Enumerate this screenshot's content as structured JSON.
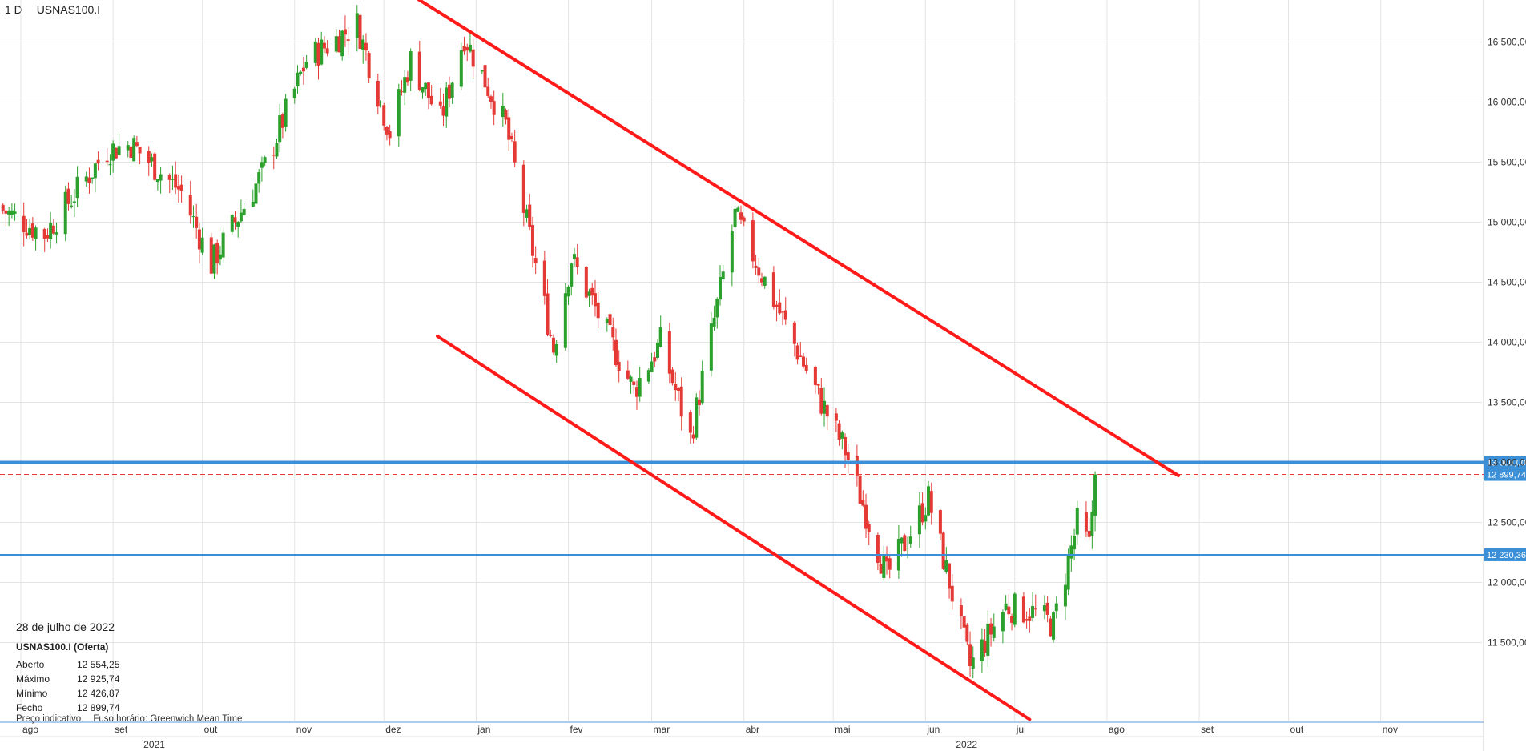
{
  "header": {
    "interval": "1 D",
    "instrument": "USNAS100.I"
  },
  "info_panel": {
    "date": "28 de julho de 2022",
    "instrument": "USNAS100.I (Oferta)",
    "rows": [
      {
        "label": "Aberto",
        "value": "12 554,25"
      },
      {
        "label": "Máximo",
        "value": "12 925,74"
      },
      {
        "label": "Mínimo",
        "value": "12 426,87"
      },
      {
        "label": "Fecho",
        "value": "12 899,74"
      }
    ]
  },
  "footnote": {
    "price_type": "Preço indicativo",
    "timezone": "Fuso horário: Greenwich Mean Time"
  },
  "colors": {
    "up": "#2ca02c",
    "down": "#e53935",
    "trendline": "#ff1a1a",
    "level": "#3a8fd6",
    "grid": "#e4e4e4"
  },
  "chart_data": {
    "type": "candlestick",
    "ylim": [
      10850,
      16850
    ],
    "x_range": [
      "2021-07-25",
      "2022-12-05"
    ],
    "y_ticks": [
      11500,
      12000,
      12500,
      13000,
      13500,
      14000,
      14500,
      15000,
      15500,
      16000,
      16500
    ],
    "y_tick_labels": [
      "11 500,00",
      "12 000,00",
      "12 500,00",
      "13 000,00",
      "13 500,00",
      "14 000,00",
      "14 500,00",
      "15 000,00",
      "15 500,00",
      "16 000,00",
      "16 500,00"
    ],
    "x_month_ticks": [
      {
        "date": "2021-08-01",
        "label": "ago"
      },
      {
        "date": "2021-09-01",
        "label": "set"
      },
      {
        "date": "2021-10-01",
        "label": "out"
      },
      {
        "date": "2021-11-01",
        "label": "nov"
      },
      {
        "date": "2021-12-01",
        "label": "dez"
      },
      {
        "date": "2022-01-01",
        "label": "jan"
      },
      {
        "date": "2022-02-01",
        "label": "fev"
      },
      {
        "date": "2022-03-01",
        "label": "mar"
      },
      {
        "date": "2022-04-01",
        "label": "abr"
      },
      {
        "date": "2022-05-01",
        "label": "mai"
      },
      {
        "date": "2022-06-01",
        "label": "jun"
      },
      {
        "date": "2022-07-01",
        "label": "jul"
      },
      {
        "date": "2022-08-01",
        "label": "ago"
      },
      {
        "date": "2022-09-01",
        "label": "set"
      },
      {
        "date": "2022-10-01",
        "label": "out"
      },
      {
        "date": "2022-11-01",
        "label": "nov"
      }
    ],
    "x_year_ticks": [
      {
        "date": "2021-09-15",
        "label": "2021"
      },
      {
        "date": "2022-06-15",
        "label": "2022"
      }
    ],
    "horizontal_levels": [
      {
        "value": 13000,
        "label": "13 000,00",
        "style": "solid-thick"
      },
      {
        "value": 12230.36,
        "label": "12 230,36",
        "style": "solid"
      }
    ],
    "current_price": {
      "value": 12899.74,
      "label": "12 899,74"
    },
    "trendlines": [
      {
        "from": {
          "date": "2021-12-11",
          "value": 16880
        },
        "to": {
          "date": "2022-08-25",
          "value": 12890
        }
      },
      {
        "from": {
          "date": "2021-12-19",
          "value": 14050
        },
        "to": {
          "date": "2022-07-06",
          "value": 10860
        }
      }
    ],
    "key_points": [
      {
        "date": "2021-07-26",
        "close": 15100
      },
      {
        "date": "2021-08-09",
        "close": 14900
      },
      {
        "date": "2021-08-30",
        "close": 15600
      },
      {
        "date": "2021-09-07",
        "close": 15650
      },
      {
        "date": "2021-09-24",
        "close": 15250
      },
      {
        "date": "2021-10-04",
        "close": 14650
      },
      {
        "date": "2021-10-21",
        "close": 15400
      },
      {
        "date": "2021-11-05",
        "close": 16350
      },
      {
        "date": "2021-11-22",
        "close": 16650
      },
      {
        "date": "2021-12-03",
        "close": 15750
      },
      {
        "date": "2021-12-10",
        "close": 16350
      },
      {
        "date": "2021-12-20",
        "close": 15850
      },
      {
        "date": "2021-12-28",
        "close": 16550
      },
      {
        "date": "2022-01-11",
        "close": 15800
      },
      {
        "date": "2022-01-27",
        "close": 13950
      },
      {
        "date": "2022-02-02",
        "close": 14700
      },
      {
        "date": "2022-02-23",
        "close": 13600
      },
      {
        "date": "2022-03-04",
        "close": 14000
      },
      {
        "date": "2022-03-14",
        "close": 13200
      },
      {
        "date": "2022-03-29",
        "close": 15050
      },
      {
        "date": "2022-04-12",
        "close": 14300
      },
      {
        "date": "2022-04-27",
        "close": 13500
      },
      {
        "date": "2022-05-05",
        "close": 13100
      },
      {
        "date": "2022-05-19",
        "close": 12050
      },
      {
        "date": "2022-06-02",
        "close": 12700
      },
      {
        "date": "2022-06-16",
        "close": 11300
      },
      {
        "date": "2022-06-28",
        "close": 11800
      },
      {
        "date": "2022-07-07",
        "close": 11750
      },
      {
        "date": "2022-07-14",
        "close": 11650
      },
      {
        "date": "2022-07-22",
        "close": 12500
      },
      {
        "date": "2022-07-26",
        "close": 12300
      },
      {
        "date": "2022-07-28",
        "close": 12899.74
      }
    ]
  }
}
